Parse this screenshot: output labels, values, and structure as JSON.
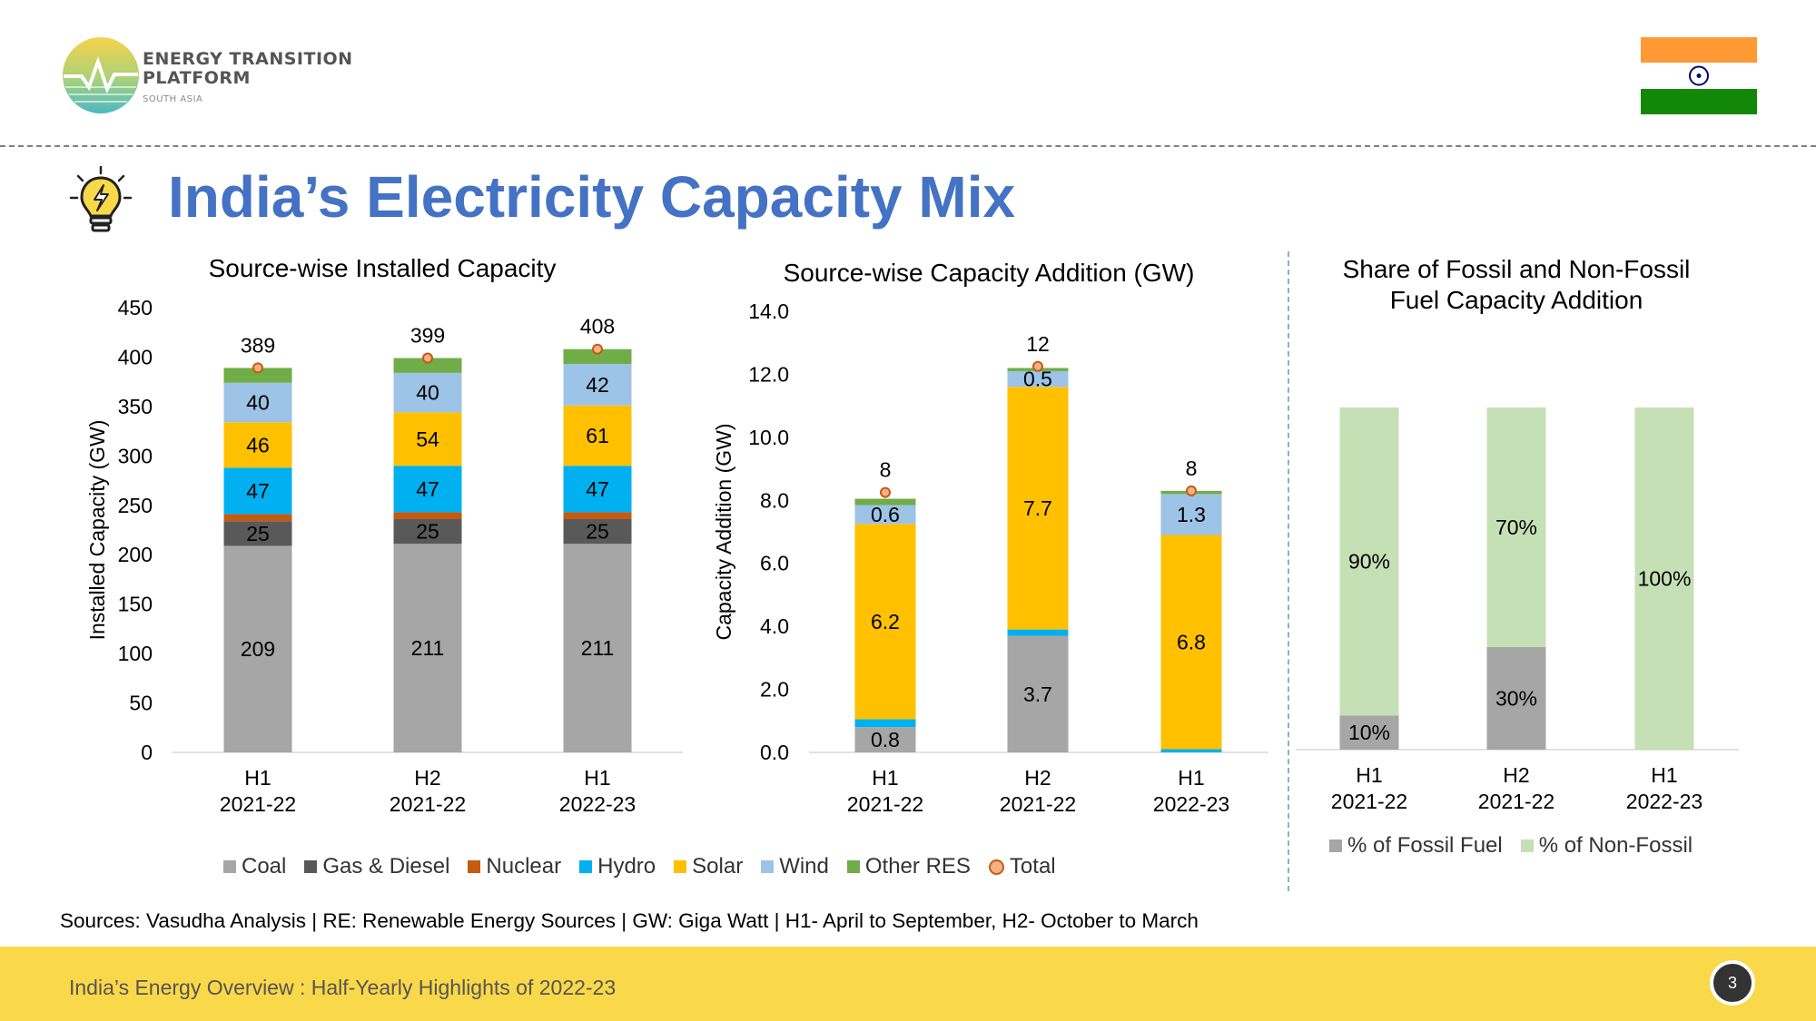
{
  "header": {
    "logo_line1": "ENERGY TRANSITION",
    "logo_line2": "PLATFORM",
    "logo_sub": "SOUTH ASIA",
    "title": "India’s Electricity Capacity Mix"
  },
  "footer": {
    "sources": "Sources: Vasudha Analysis  |  RE: Renewable Energy Sources  |  GW: Giga Watt  |  H1- April to September, H2- October to March",
    "text": "India’s Energy Overview : Half-Yearly Highlights of 2022-23",
    "page": "3"
  },
  "colors": {
    "title_blue": "#4472c4",
    "footer_yellow": "#f9d84a",
    "coal": "#a6a6a6",
    "gas": "#595959",
    "nuclear": "#c55a11",
    "hydro": "#00b0f0",
    "solar": "#ffc000",
    "wind": "#9dc3e6",
    "other": "#70ad47",
    "fossil": "#a6a6a6",
    "nonfossil": "#c5e0b4"
  },
  "legend1": [
    "Coal",
    "Gas & Diesel",
    "Nuclear",
    "Hydro",
    "Solar",
    "Wind",
    "Other RES",
    "Total"
  ],
  "legend3": [
    "% of Fossil Fuel",
    "% of Non-Fossil"
  ],
  "chart_data": [
    {
      "type": "bar",
      "stacked": true,
      "title": "Source-wise Installed Capacity",
      "ylabel": "Installed Capacity (GW)",
      "ylim": [
        0,
        450
      ],
      "yticks": [
        "0",
        "50",
        "100",
        "150",
        "200",
        "250",
        "300",
        "350",
        "400",
        "450"
      ],
      "categories": [
        [
          "H1",
          "2021-22"
        ],
        [
          "H2",
          "2021-22"
        ],
        [
          "H1",
          "2022-23"
        ]
      ],
      "series": [
        {
          "name": "Coal",
          "values": [
            209,
            211,
            211
          ],
          "labels": [
            "209",
            "211",
            "211"
          ]
        },
        {
          "name": "Gas & Diesel",
          "values": [
            25,
            25,
            25
          ],
          "labels": [
            "25",
            "25",
            "25"
          ]
        },
        {
          "name": "Nuclear",
          "values": [
            7,
            7,
            7
          ],
          "labels": [
            "",
            "",
            ""
          ]
        },
        {
          "name": "Hydro",
          "values": [
            47,
            47,
            47
          ],
          "labels": [
            "47",
            "47",
            "47"
          ]
        },
        {
          "name": "Solar",
          "values": [
            46,
            54,
            61
          ],
          "labels": [
            "46",
            "54",
            "61"
          ]
        },
        {
          "name": "Wind",
          "values": [
            40,
            40,
            42
          ],
          "labels": [
            "40",
            "40",
            "42"
          ]
        },
        {
          "name": "Other RES",
          "values": [
            15,
            15,
            15
          ],
          "labels": [
            "",
            "",
            ""
          ]
        }
      ],
      "totals": [
        389,
        399,
        408
      ],
      "total_labels": [
        "389",
        "399",
        "408"
      ]
    },
    {
      "type": "bar",
      "stacked": true,
      "title": "Source-wise Capacity Addition (GW)",
      "ylabel": "Capacity Addition (GW)",
      "ylim": [
        0,
        14
      ],
      "yticks": [
        "0.0",
        "2.0",
        "4.0",
        "6.0",
        "8.0",
        "10.0",
        "12.0",
        "14.0"
      ],
      "categories": [
        [
          "H1",
          "2021-22"
        ],
        [
          "H2",
          "2021-22"
        ],
        [
          "H1",
          "2022-23"
        ]
      ],
      "series": [
        {
          "name": "Coal",
          "values": [
            0.8,
            3.7,
            0
          ],
          "labels": [
            "0.8",
            "3.7",
            ""
          ]
        },
        {
          "name": "Gas & Diesel",
          "values": [
            0,
            0,
            0
          ],
          "labels": [
            "",
            "",
            ""
          ]
        },
        {
          "name": "Nuclear",
          "values": [
            0,
            0,
            0
          ],
          "labels": [
            "",
            "",
            ""
          ]
        },
        {
          "name": "Hydro",
          "values": [
            0.25,
            0.2,
            0.1
          ],
          "labels": [
            "",
            "",
            ""
          ]
        },
        {
          "name": "Solar",
          "values": [
            6.2,
            7.7,
            6.8
          ],
          "labels": [
            "6.2",
            "7.7",
            "6.8"
          ]
        },
        {
          "name": "Wind",
          "values": [
            0.6,
            0.5,
            1.3
          ],
          "labels": [
            "0.6",
            "0.5",
            "1.3"
          ]
        },
        {
          "name": "Other RES",
          "values": [
            0.2,
            0.1,
            0.1
          ],
          "labels": [
            "",
            "",
            ""
          ]
        }
      ],
      "totals": [
        8.25,
        12.25,
        8.3
      ],
      "total_labels": [
        "8",
        "12",
        "8"
      ]
    },
    {
      "type": "bar",
      "stacked": true,
      "title": [
        "Share of Fossil and Non-Fossil",
        "Fuel Capacity Addition"
      ],
      "ylim": [
        0,
        100
      ],
      "categories": [
        [
          "H1",
          "2021-22"
        ],
        [
          "H2",
          "2021-22"
        ],
        [
          "H1",
          "2022-23"
        ]
      ],
      "series": [
        {
          "name": "% of Fossil Fuel",
          "values": [
            10,
            30,
            0
          ],
          "labels": [
            "10%",
            "30%",
            ""
          ]
        },
        {
          "name": "% of Non-Fossil",
          "values": [
            90,
            70,
            100
          ],
          "labels": [
            "90%",
            "70%",
            "100%"
          ]
        }
      ]
    }
  ]
}
